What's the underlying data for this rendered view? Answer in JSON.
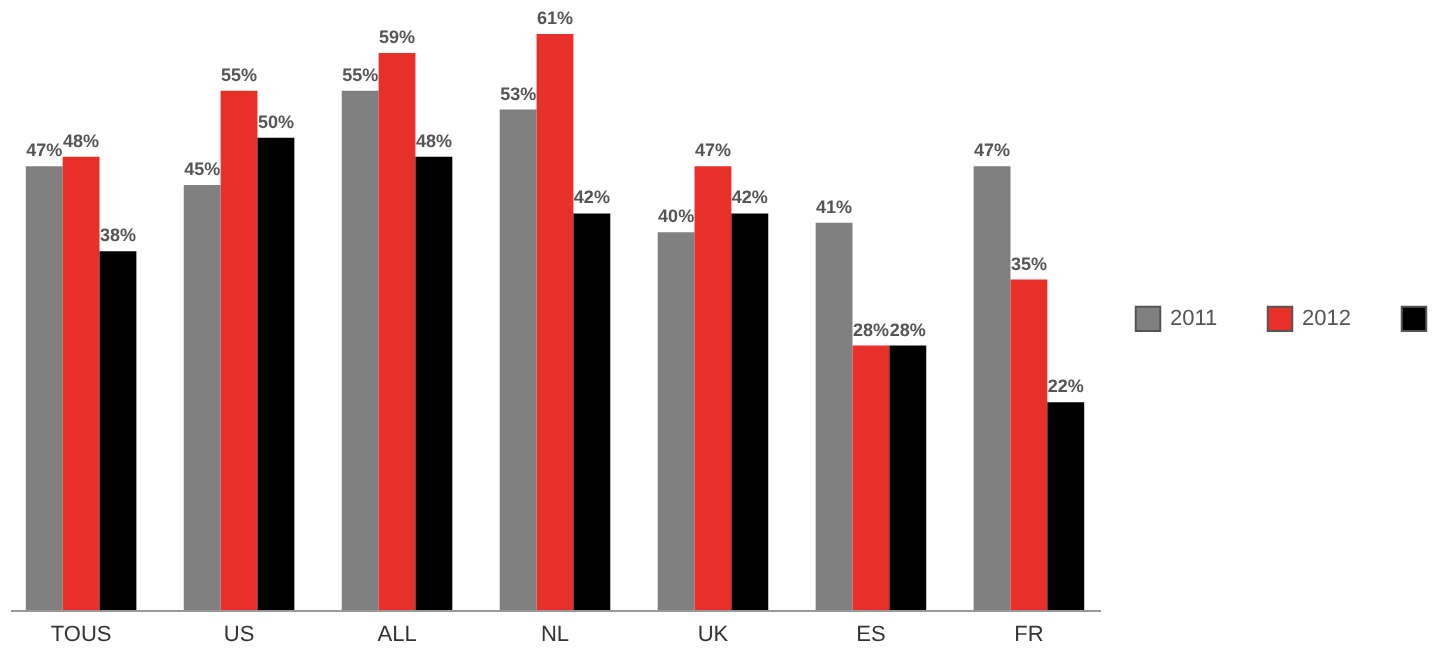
{
  "chart_data": {
    "type": "bar",
    "categories": [
      "TOUS",
      "US",
      "ALL",
      "NL",
      "UK",
      "ES",
      "FR"
    ],
    "series": [
      {
        "name": "2011",
        "color": "#808080",
        "values": [
          47,
          45,
          55,
          53,
          40,
          41,
          47
        ],
        "value_labels": [
          "47%",
          "45%",
          "55%",
          "53%",
          "40%",
          "41%",
          "47%"
        ]
      },
      {
        "name": "2012",
        "color": "#e8302a",
        "values": [
          48,
          55,
          59,
          61,
          47,
          28,
          35
        ],
        "value_labels": [
          "48%",
          "55%",
          "59%",
          "61%",
          "47%",
          "28%",
          "35%"
        ]
      },
      {
        "color": "#000000",
        "values": [
          38,
          50,
          48,
          42,
          42,
          28,
          22
        ],
        "value_labels": [
          "38%",
          "50%",
          "48%",
          "42%",
          "42%",
          "28%",
          "22%"
        ]
      }
    ],
    "legend": "right",
    "tick_labels": "x"
  }
}
